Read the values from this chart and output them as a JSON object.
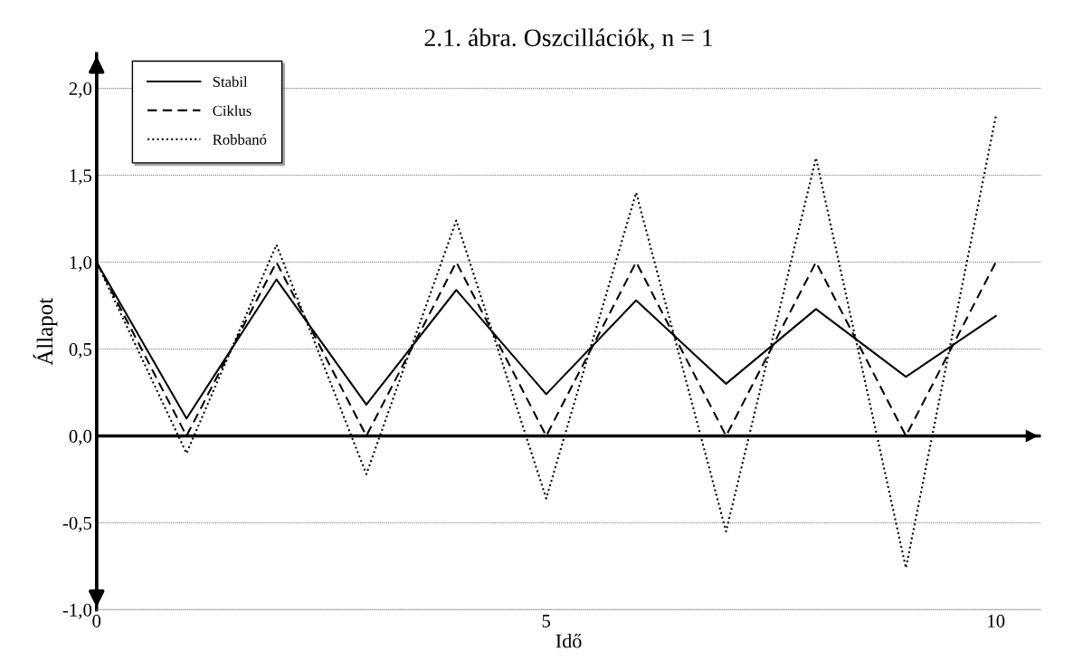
{
  "chart_data": {
    "type": "line",
    "title": "2.1. ábra. Oszcillációk, n = 1",
    "xlabel": "Idő",
    "ylabel": "Állapot",
    "x": [
      0,
      1,
      2,
      3,
      4,
      5,
      6,
      7,
      8,
      9,
      10
    ],
    "series": [
      {
        "name": "Stabil",
        "color": "#000000",
        "line_style": "solid",
        "values": [
          1.0,
          0.1,
          0.9,
          0.18,
          0.84,
          0.24,
          0.78,
          0.3,
          0.73,
          0.34,
          0.69
        ]
      },
      {
        "name": "Ciklus",
        "color": "#000000",
        "line_style": "dashed",
        "values": [
          1.0,
          0.0,
          1.0,
          0.0,
          1.0,
          0.0,
          1.0,
          0.0,
          1.0,
          0.0,
          1.0
        ]
      },
      {
        "name": "Robbanó",
        "color": "#000000",
        "line_style": "dotted",
        "values": [
          1.0,
          -0.1,
          1.1,
          -0.22,
          1.24,
          -0.36,
          1.4,
          -0.55,
          1.6,
          -0.76,
          1.84
        ]
      }
    ],
    "xlim": [
      0,
      10.5
    ],
    "xticks": [
      0,
      5,
      10
    ],
    "ylim": [
      -1.0,
      2.2
    ],
    "yticks": [
      {
        "value": -1.0,
        "label": "-1,0"
      },
      {
        "value": -0.5,
        "label": "-0,5"
      },
      {
        "value": 0.0,
        "label": "0,0"
      },
      {
        "value": 0.5,
        "label": "0,5"
      },
      {
        "value": 1.0,
        "label": "1,0"
      },
      {
        "value": 1.5,
        "label": "1,5"
      },
      {
        "value": 2.0,
        "label": "2,0"
      }
    ],
    "ref_lines": [
      {
        "axis": "y",
        "value": 0.0,
        "color": "#000000"
      }
    ],
    "grid": "y",
    "legend": "top left",
    "marker": "none"
  }
}
